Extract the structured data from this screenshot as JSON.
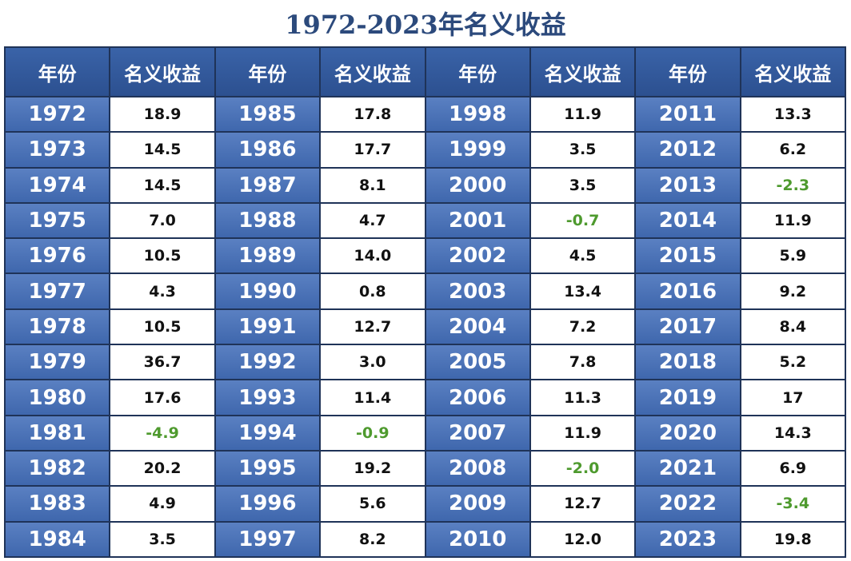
{
  "table": {
    "title": "1972-2023年名义收益",
    "header": [
      "年份",
      "名义收益",
      "年份",
      "名义收益",
      "年份",
      "名义收益",
      "年份",
      "名义收益"
    ],
    "rows": [
      [
        "1972",
        "18.9",
        "1985",
        "17.8",
        "1998",
        "11.9",
        "2011",
        "13.3"
      ],
      [
        "1973",
        "14.5",
        "1986",
        "17.7",
        "1999",
        "3.5",
        "2012",
        "6.2"
      ],
      [
        "1974",
        "14.5",
        "1987",
        "8.1",
        "2000",
        "3.5",
        "2013",
        "-2.3"
      ],
      [
        "1975",
        "7.0",
        "1988",
        "4.7",
        "2001",
        "-0.7",
        "2014",
        "11.9"
      ],
      [
        "1976",
        "10.5",
        "1989",
        "14.0",
        "2002",
        "4.5",
        "2015",
        "5.9"
      ],
      [
        "1977",
        "4.3",
        "1990",
        "0.8",
        "2003",
        "13.4",
        "2016",
        "9.2"
      ],
      [
        "1978",
        "10.5",
        "1991",
        "12.7",
        "2004",
        "7.2",
        "2017",
        "8.4"
      ],
      [
        "1979",
        "36.7",
        "1992",
        "3.0",
        "2005",
        "7.8",
        "2018",
        "5.2"
      ],
      [
        "1980",
        "17.6",
        "1993",
        "11.4",
        "2006",
        "11.3",
        "2019",
        "17"
      ],
      [
        "1981",
        "-4.9",
        "1994",
        "-0.9",
        "2007",
        "11.9",
        "2020",
        "14.3"
      ],
      [
        "1982",
        "20.2",
        "1995",
        "19.2",
        "2008",
        "-2.0",
        "2021",
        "6.9"
      ],
      [
        "1983",
        "4.9",
        "1996",
        "5.6",
        "2009",
        "12.7",
        "2022",
        "-3.4"
      ],
      [
        "1984",
        "3.5",
        "1997",
        "8.2",
        "2010",
        "12.0",
        "2023",
        "19.8"
      ]
    ]
  }
}
